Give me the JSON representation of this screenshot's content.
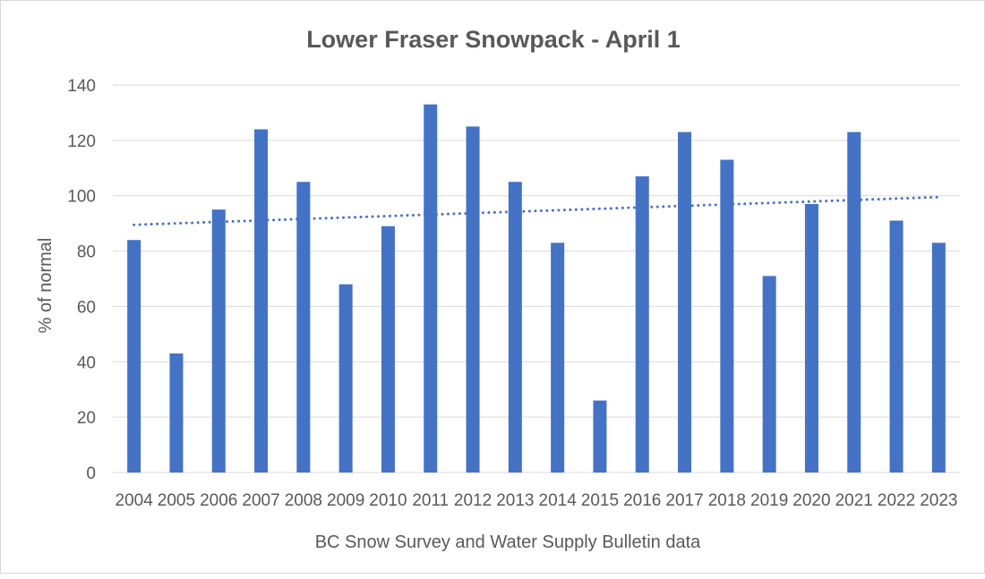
{
  "chart_data": {
    "type": "bar",
    "title": "Lower Fraser Snowpack - April 1",
    "xlabel": "BC Snow Survey and Water Supply Bulletin data",
    "ylabel": "% of normal",
    "categories": [
      "2004",
      "2005",
      "2006",
      "2007",
      "2008",
      "2009",
      "2010",
      "2011",
      "2012",
      "2013",
      "2014",
      "2015",
      "2016",
      "2017",
      "2018",
      "2019",
      "2020",
      "2021",
      "2022",
      "2023"
    ],
    "values": [
      84,
      43,
      95,
      124,
      105,
      68,
      89,
      133,
      125,
      105,
      83,
      26,
      107,
      123,
      113,
      71,
      97,
      123,
      91,
      83
    ],
    "ylim": [
      0,
      140
    ],
    "yticks": [
      0,
      20,
      40,
      60,
      80,
      100,
      120,
      140
    ],
    "grid": true,
    "trendline": {
      "type": "linear",
      "style": "dotted",
      "start": 89.5,
      "end": 99.5
    },
    "colors": {
      "bar": "#4472c4",
      "trend": "#4472c4",
      "grid": "#d9d9d9",
      "text": "#595959",
      "title": "#595959"
    }
  }
}
